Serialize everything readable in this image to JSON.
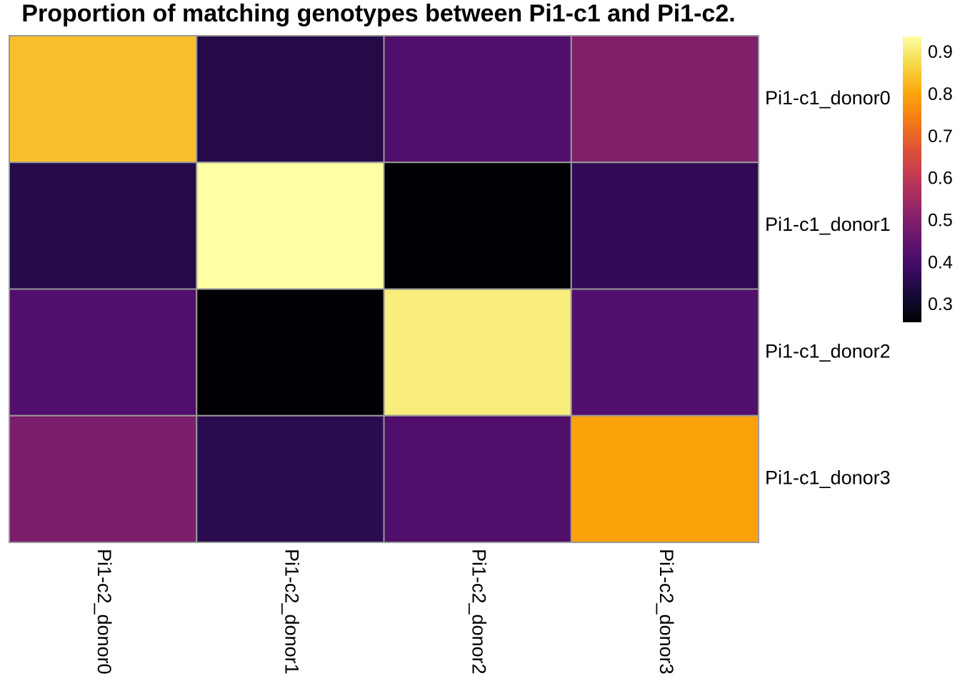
{
  "chart_data": {
    "type": "heatmap",
    "title": "Proportion of matching genotypes between Pi1-c1 and Pi1-c2.",
    "rows": [
      "Pi1-c1_donor0",
      "Pi1-c1_donor1",
      "Pi1-c1_donor2",
      "Pi1-c1_donor3"
    ],
    "columns": [
      "Pi1-c2_donor0",
      "Pi1-c2_donor1",
      "Pi1-c2_donor2",
      "Pi1-c2_donor3"
    ],
    "values": [
      [
        0.84,
        0.35,
        0.42,
        0.5
      ],
      [
        0.35,
        0.94,
        0.26,
        0.37
      ],
      [
        0.42,
        0.26,
        0.91,
        0.42
      ],
      [
        0.49,
        0.36,
        0.42,
        0.8
      ]
    ],
    "colorscale": "inferno",
    "color_range": [
      0.26,
      0.94
    ],
    "legend_ticks": [
      0.3,
      0.4,
      0.5,
      0.6,
      0.7,
      0.8,
      0.9
    ],
    "legend_tick_labels": [
      "0.3",
      "0.4",
      "0.5",
      "0.6",
      "0.7",
      "0.8",
      "0.9"
    ],
    "legend_position": "right",
    "cell_border_color": "#999999"
  }
}
